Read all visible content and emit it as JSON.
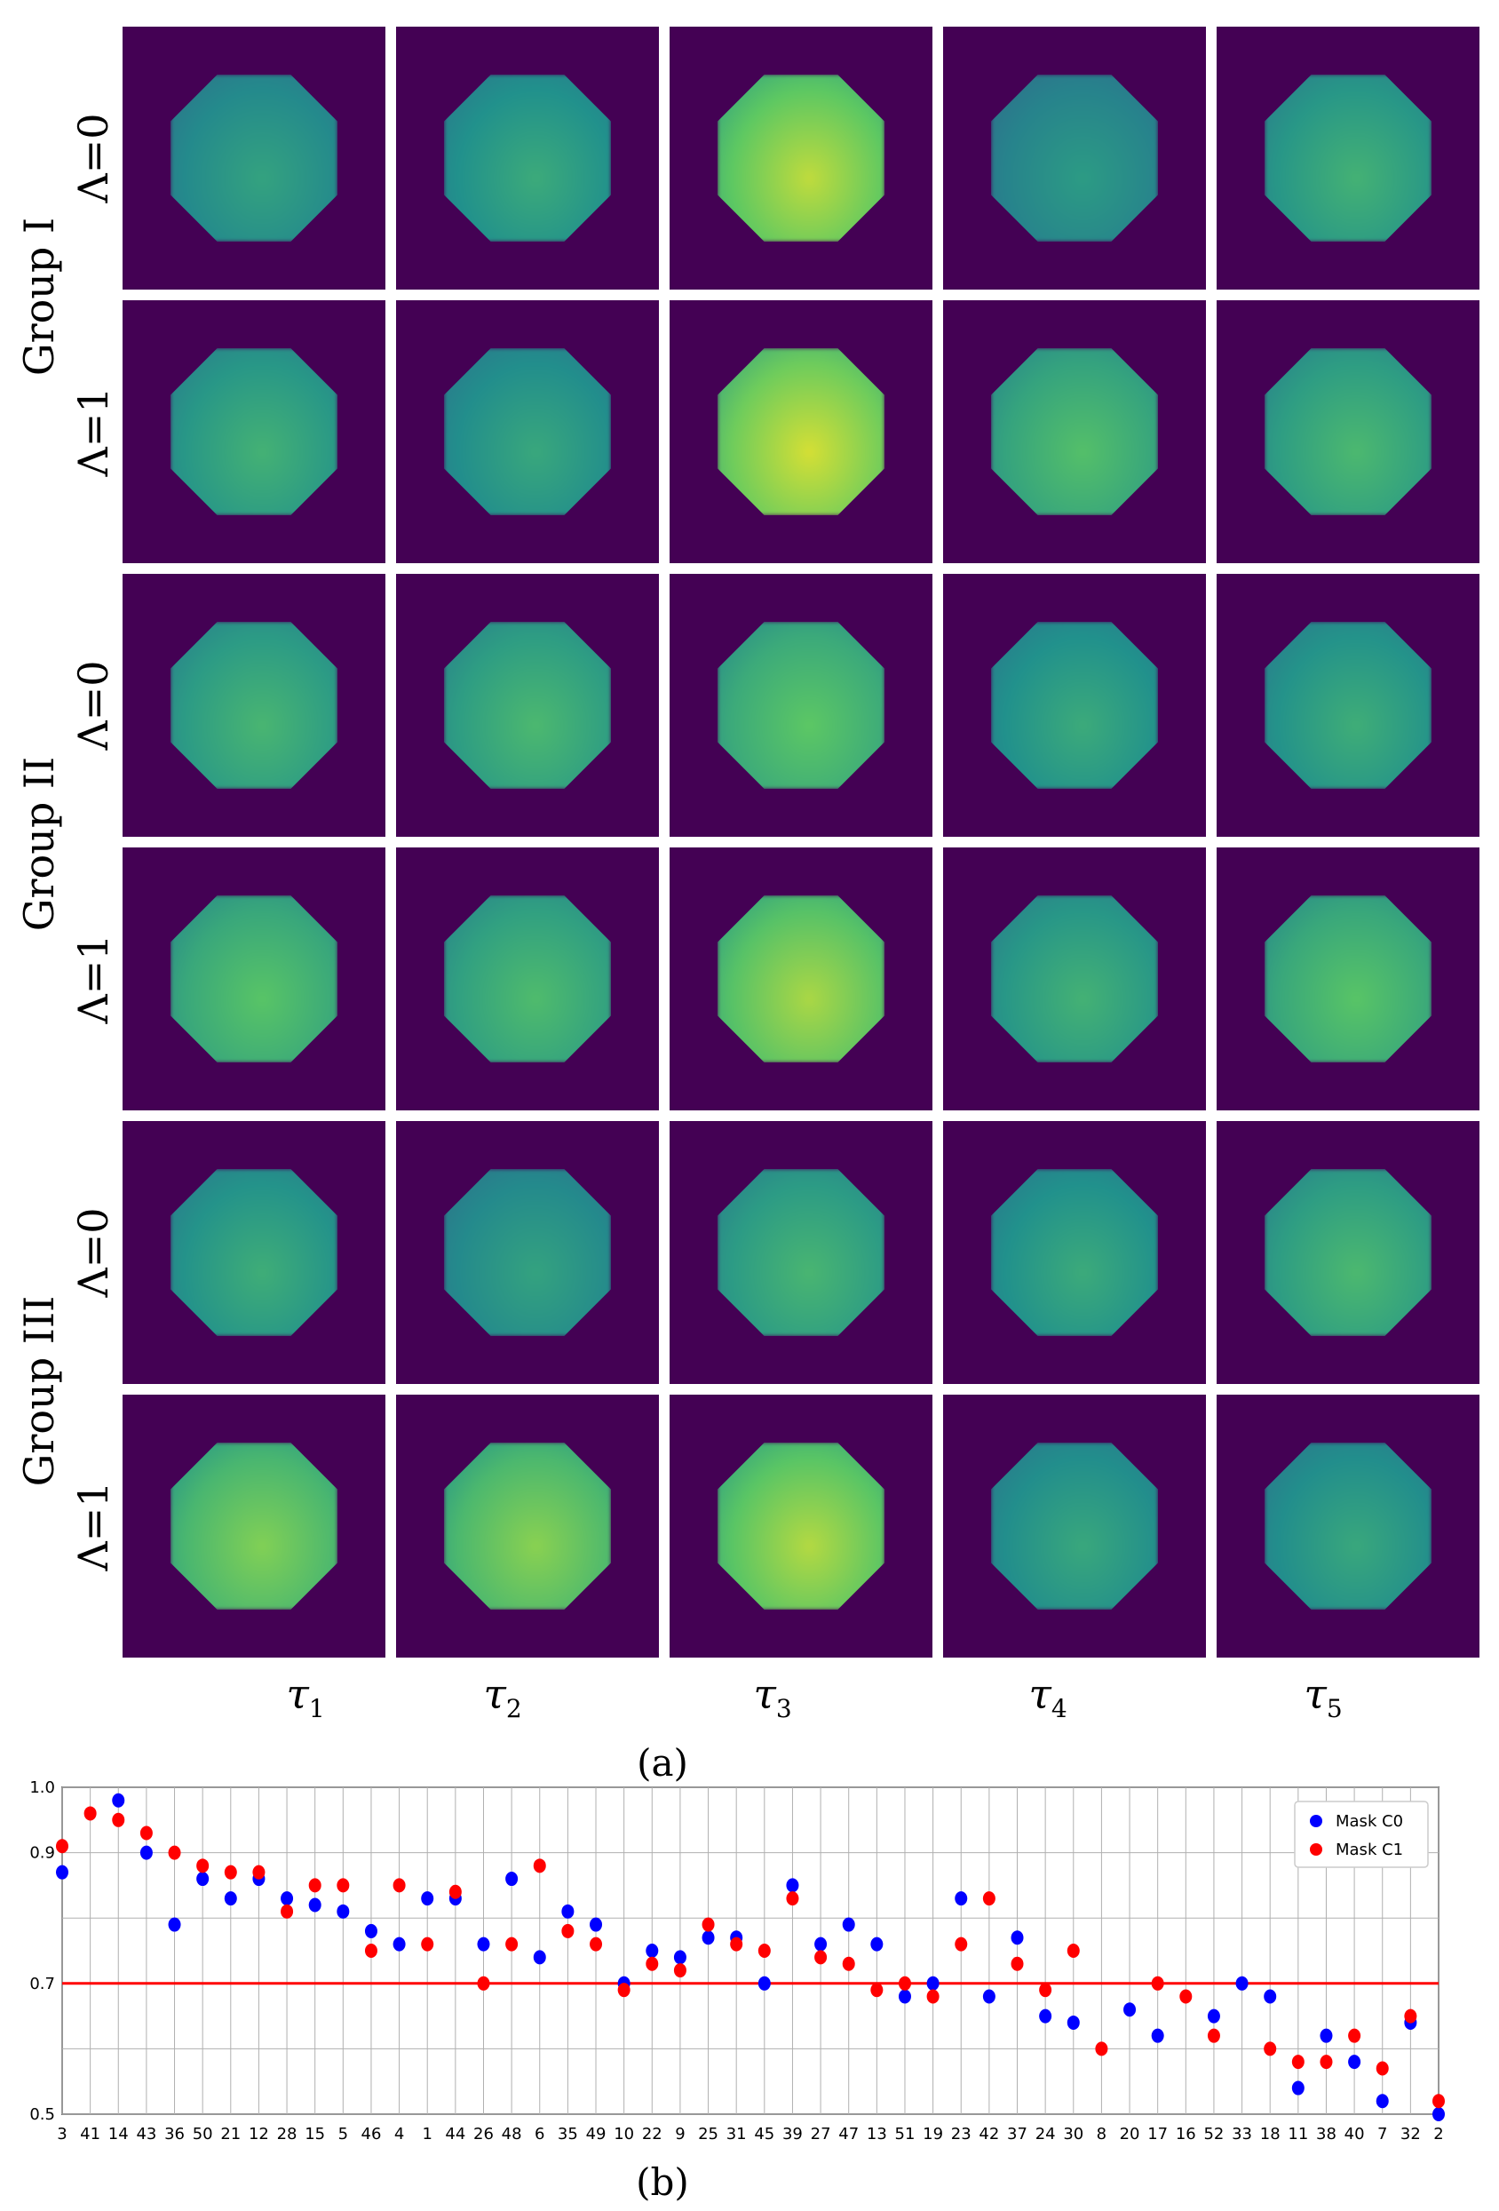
{
  "figure": {
    "panel_a": {
      "group_labels": [
        "Group I",
        "Group II",
        "Group III"
      ],
      "row_labels": [
        "Λ=0",
        "Λ=1",
        "Λ=0",
        "Λ=1",
        "Λ=0",
        "Λ=1"
      ],
      "column_labels": [
        {
          "sym": "τ",
          "sub": "1"
        },
        {
          "sym": "τ",
          "sub": "2"
        },
        {
          "sym": "τ",
          "sub": "3"
        },
        {
          "sym": "τ",
          "sub": "4"
        },
        {
          "sym": "τ",
          "sub": "5"
        }
      ],
      "caption": "(a)",
      "intensity": [
        [
          0.35,
          0.4,
          0.85,
          0.3,
          0.45
        ],
        [
          0.45,
          0.38,
          0.9,
          0.55,
          0.5
        ],
        [
          0.48,
          0.5,
          0.6,
          0.4,
          0.42
        ],
        [
          0.58,
          0.52,
          0.8,
          0.45,
          0.58
        ],
        [
          0.42,
          0.35,
          0.48,
          0.4,
          0.5
        ],
        [
          0.7,
          0.72,
          0.82,
          0.38,
          0.38
        ]
      ],
      "colormap": "viridis"
    },
    "panel_b": {
      "caption": "(b)"
    }
  },
  "chart_data": {
    "type": "scatter",
    "title": "",
    "xlabel": "",
    "ylabel": "",
    "ylim": [
      0.5,
      1.0
    ],
    "yticks": [
      "0.5",
      "0.7",
      "0.9",
      "1.0"
    ],
    "grid": true,
    "legend_position": "top-right",
    "reference_line": {
      "y": 0.7,
      "color": "#ff0000"
    },
    "categories": [
      "3",
      "41",
      "14",
      "43",
      "36",
      "50",
      "21",
      "12",
      "28",
      "15",
      "5",
      "46",
      "4",
      "1",
      "44",
      "26",
      "48",
      "6",
      "35",
      "49",
      "10",
      "22",
      "9",
      "25",
      "31",
      "45",
      "39",
      "27",
      "47",
      "13",
      "51",
      "19",
      "23",
      "42",
      "37",
      "24",
      "30",
      "8",
      "20",
      "17",
      "16",
      "52",
      "33",
      "18",
      "11",
      "38",
      "40",
      "7",
      "32",
      "2"
    ],
    "series": [
      {
        "name": "Mask C0",
        "color": "#0000ff",
        "values": [
          0.87,
          null,
          0.98,
          0.9,
          0.79,
          0.86,
          0.83,
          0.86,
          0.83,
          0.82,
          0.81,
          0.78,
          0.76,
          0.83,
          0.83,
          0.76,
          0.86,
          0.74,
          0.81,
          0.79,
          0.7,
          0.75,
          0.74,
          0.77,
          0.77,
          0.7,
          0.85,
          0.76,
          0.79,
          0.76,
          0.68,
          0.7,
          0.83,
          0.68,
          0.77,
          0.65,
          0.64,
          null,
          0.66,
          0.62,
          null,
          0.65,
          0.7,
          0.68,
          0.54,
          0.62,
          0.58,
          0.52,
          0.64,
          0.5
        ]
      },
      {
        "name": "Mask C1",
        "color": "#ff0000",
        "values": [
          0.91,
          0.96,
          0.95,
          0.93,
          0.9,
          0.88,
          0.87,
          0.87,
          0.81,
          0.85,
          0.85,
          0.75,
          0.85,
          0.76,
          0.84,
          0.7,
          0.76,
          0.88,
          0.78,
          0.76,
          0.69,
          0.73,
          0.72,
          0.79,
          0.76,
          0.75,
          0.83,
          0.74,
          0.73,
          0.69,
          0.7,
          0.68,
          0.76,
          0.83,
          0.73,
          0.69,
          0.75,
          0.6,
          null,
          0.7,
          0.68,
          0.62,
          null,
          0.6,
          0.58,
          0.58,
          0.62,
          0.57,
          0.65,
          0.52
        ]
      }
    ]
  }
}
